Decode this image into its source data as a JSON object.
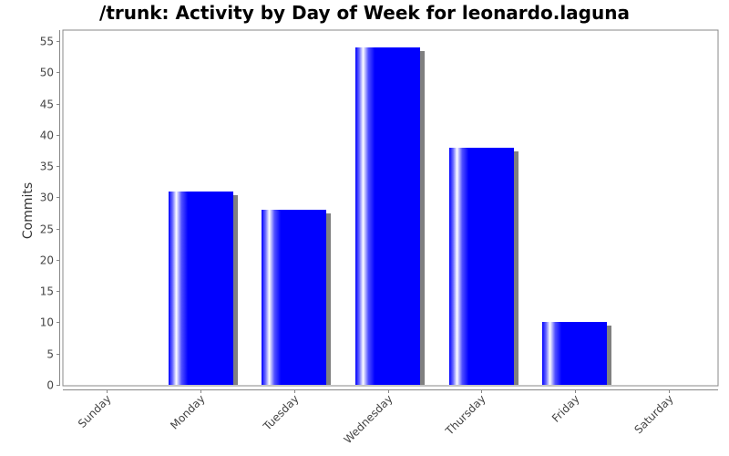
{
  "chart_data": {
    "type": "bar",
    "title": "/trunk: Activity by Day of Week for leonardo.laguna",
    "xlabel": "",
    "ylabel": "Commits",
    "categories": [
      "Sunday",
      "Monday",
      "Tuesday",
      "Wednesday",
      "Thursday",
      "Friday",
      "Saturday"
    ],
    "values": [
      0,
      31,
      28,
      54,
      38,
      10,
      0
    ],
    "ylim": [
      0,
      56
    ],
    "yticks": [
      0,
      5,
      10,
      15,
      20,
      25,
      30,
      35,
      40,
      45,
      50,
      55
    ],
    "grid": false,
    "legend": null,
    "bar_color": "#0000ff",
    "shadow_color": "#808080"
  }
}
